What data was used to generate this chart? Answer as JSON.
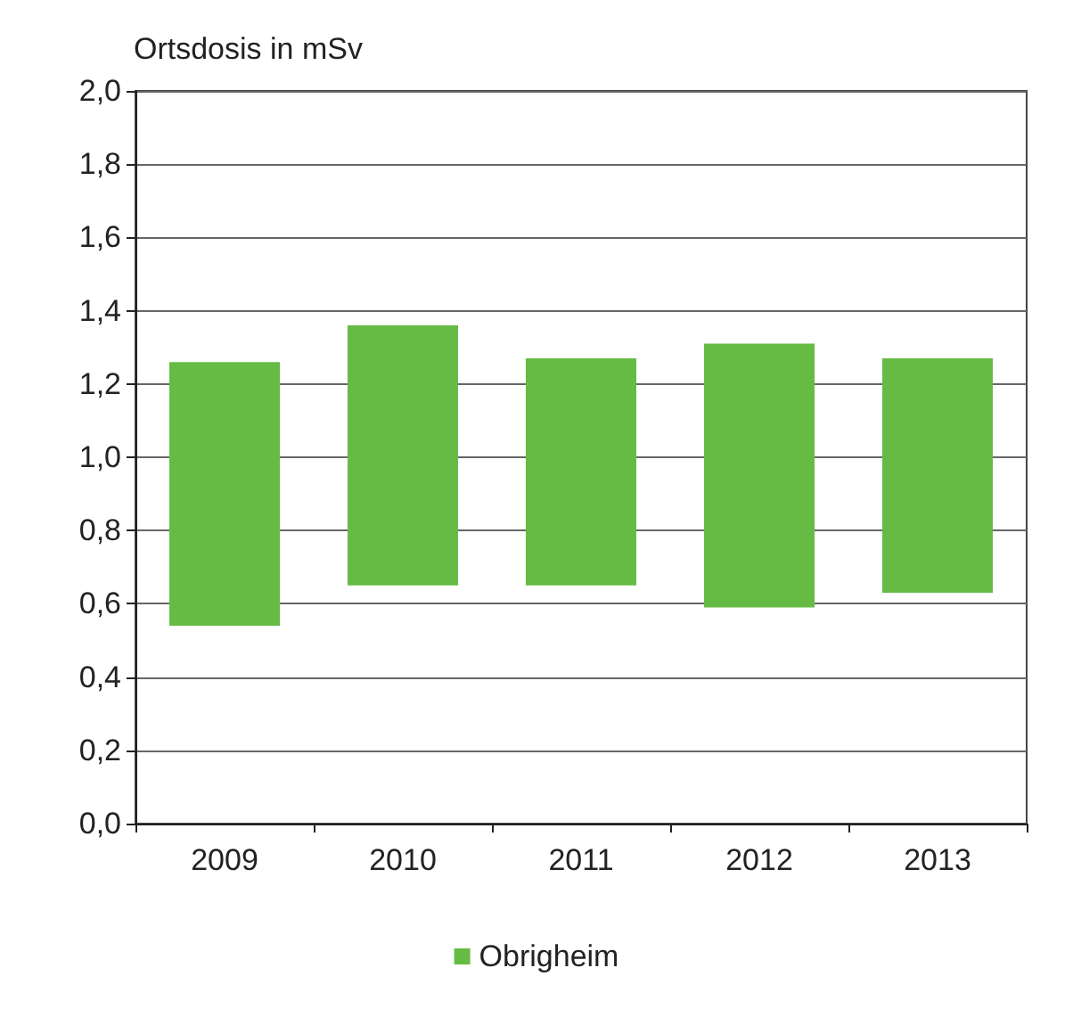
{
  "chart_data": {
    "type": "bar",
    "ylabel": "Ortsdosis in mSv",
    "categories": [
      "2009",
      "2010",
      "2011",
      "2012",
      "2013"
    ],
    "series": [
      {
        "name": "Obrigheim",
        "color": "#66bb44",
        "values": [
          0.72,
          0.71,
          0.62,
          0.72,
          0.64
        ],
        "base": [
          0.54,
          0.65,
          0.65,
          0.59,
          0.63
        ]
      }
    ],
    "ylim": [
      0,
      2
    ],
    "yticks": [
      {
        "value": 0,
        "label": "0,0"
      },
      {
        "value": 0.2,
        "label": "0,2"
      },
      {
        "value": 0.4,
        "label": "0,4"
      },
      {
        "value": 0.6,
        "label": "0,6"
      },
      {
        "value": 0.8,
        "label": "0,8"
      },
      {
        "value": 1,
        "label": "1,0"
      },
      {
        "value": 1.2,
        "label": "1,2"
      },
      {
        "value": 1.4,
        "label": "1,4"
      },
      {
        "value": 1.6,
        "label": "1,6"
      },
      {
        "value": 1.8,
        "label": "1,8"
      },
      {
        "value": 2,
        "label": "2,0"
      }
    ],
    "grid": "y",
    "legend": "bottom"
  }
}
